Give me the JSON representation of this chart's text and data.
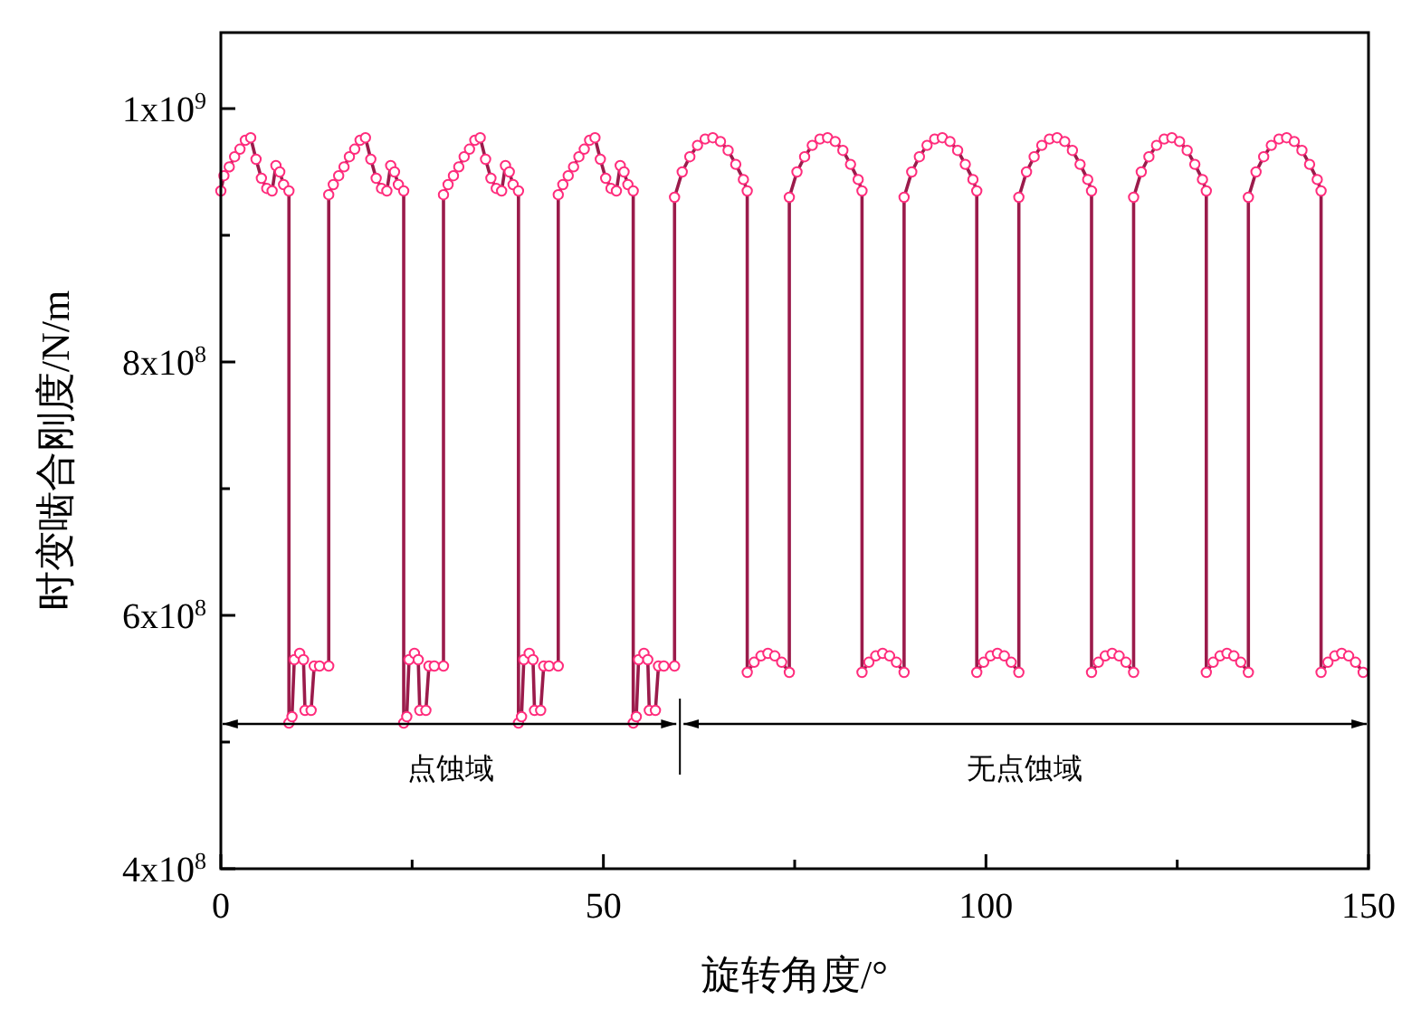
{
  "chart_data": {
    "type": "line",
    "xlabel": "旋转角度/°",
    "ylabel": "时变啮合刚度/N/m",
    "xlim": [
      0,
      150
    ],
    "xticks": [
      0,
      {
        "value": 25,
        "label": null
      },
      50,
      {
        "value": 75,
        "label": null
      },
      100,
      {
        "value": 125,
        "label": null
      },
      150
    ],
    "ylim": [
      400000000.0,
      1060000000.0
    ],
    "yticks": [
      {
        "value": 400000000.0,
        "label": "4x10$^{8}$"
      },
      {
        "value": 500000000.0,
        "label": null
      },
      {
        "value": 600000000.0,
        "label": "6x10$^{8}$"
      },
      {
        "value": 700000000.0,
        "label": null
      },
      {
        "value": 800000000.0,
        "label": "8x10$^{8}$"
      },
      {
        "value": 900000000.0,
        "label": null
      },
      {
        "value": 1000000000.0,
        "label": "1x10$^{9}$"
      }
    ],
    "marker": "circle",
    "line_style": "solid",
    "ref_lines": [
      {
        "axis": "x",
        "value": 60
      }
    ],
    "annotations": [
      "点蚀域",
      "无点蚀域"
    ],
    "series": [
      {
        "color": "#9b1b4b",
        "x": [
          0,
          0.4,
          1.1,
          1.8,
          2.5,
          3.2,
          3.9,
          4.6,
          5.3,
          6.0,
          6.7,
          7.2,
          7.7,
          8.2,
          8.9,
          8.9,
          9.3,
          9.6,
          10.3,
          10.8,
          11.0,
          11.8,
          12.2,
          12.9,
          14.1,
          14.1,
          14.7,
          15.4,
          16.1,
          16.8,
          17.5,
          18.2,
          18.9,
          19.6,
          20.3,
          21.0,
          21.7,
          22.2,
          22.7,
          23.2,
          23.9,
          23.9,
          24.3,
          24.6,
          25.3,
          25.8,
          26.0,
          26.8,
          27.2,
          27.9,
          29.1,
          29.1,
          29.7,
          30.4,
          31.1,
          31.8,
          32.5,
          33.2,
          33.9,
          34.6,
          35.3,
          36.0,
          36.7,
          37.2,
          37.7,
          38.2,
          38.9,
          38.9,
          39.3,
          39.6,
          40.3,
          40.8,
          41.0,
          41.8,
          42.2,
          42.9,
          44.1,
          44.1,
          44.7,
          45.4,
          46.1,
          46.8,
          47.5,
          48.2,
          48.9,
          49.6,
          50.3,
          51.0,
          51.7,
          52.2,
          52.7,
          53.2,
          53.9,
          53.9,
          54.3,
          54.6,
          55.3,
          55.8,
          56.0,
          56.8,
          57.2,
          57.9,
          59.3,
          59.3,
          60.3,
          61.3,
          62.3,
          63.3,
          64.3,
          65.3,
          66.3,
          67.3,
          68.3,
          68.8,
          68.8,
          69.7,
          70.6,
          71.5,
          72.4,
          73.3,
          74.3,
          74.3,
          75.3,
          76.3,
          77.3,
          78.3,
          79.3,
          80.3,
          81.3,
          82.3,
          83.3,
          83.8,
          83.8,
          84.7,
          85.6,
          86.5,
          87.4,
          88.3,
          89.3,
          89.3,
          90.3,
          91.3,
          92.3,
          93.3,
          94.3,
          95.3,
          96.3,
          97.3,
          98.3,
          98.8,
          98.8,
          99.7,
          100.6,
          101.5,
          102.4,
          103.3,
          104.3,
          104.3,
          105.3,
          106.3,
          107.3,
          108.3,
          109.3,
          110.3,
          111.3,
          112.3,
          113.3,
          113.8,
          113.8,
          114.7,
          115.6,
          116.5,
          117.4,
          118.3,
          119.3,
          119.3,
          120.3,
          121.3,
          122.3,
          123.3,
          124.3,
          125.3,
          126.3,
          127.3,
          128.3,
          128.8,
          128.8,
          129.7,
          130.6,
          131.5,
          132.4,
          133.3,
          134.3,
          134.3,
          135.3,
          136.3,
          137.3,
          138.3,
          139.3,
          140.3,
          141.3,
          142.3,
          143.3,
          143.8,
          143.8,
          144.7,
          145.6,
          146.5,
          147.4,
          148.3,
          149.3
        ],
        "values": [
          935000000.0,
          947000000.0,
          954000000.0,
          962000000.0,
          968000000.0,
          975000000.0,
          977000000.0,
          960000000.0,
          945000000.0,
          937000000.0,
          935000000.0,
          955000000.0,
          950000000.0,
          940000000.0,
          935000000.0,
          515000000.0,
          520000000.0,
          565000000.0,
          570000000.0,
          565000000.0,
          525000000.0,
          525000000.0,
          560000000.0,
          560000000.0,
          560000000.0,
          932000000.0,
          940000000.0,
          947000000.0,
          954000000.0,
          962000000.0,
          968000000.0,
          975000000.0,
          977000000.0,
          960000000.0,
          945000000.0,
          937000000.0,
          935000000.0,
          955000000.0,
          950000000.0,
          940000000.0,
          935000000.0,
          515000000.0,
          520000000.0,
          565000000.0,
          570000000.0,
          565000000.0,
          525000000.0,
          525000000.0,
          560000000.0,
          560000000.0,
          560000000.0,
          932000000.0,
          940000000.0,
          947000000.0,
          954000000.0,
          962000000.0,
          968000000.0,
          975000000.0,
          977000000.0,
          960000000.0,
          945000000.0,
          937000000.0,
          935000000.0,
          955000000.0,
          950000000.0,
          940000000.0,
          935000000.0,
          515000000.0,
          520000000.0,
          565000000.0,
          570000000.0,
          565000000.0,
          525000000.0,
          525000000.0,
          560000000.0,
          560000000.0,
          560000000.0,
          932000000.0,
          940000000.0,
          947000000.0,
          954000000.0,
          962000000.0,
          968000000.0,
          975000000.0,
          977000000.0,
          960000000.0,
          945000000.0,
          937000000.0,
          935000000.0,
          955000000.0,
          950000000.0,
          940000000.0,
          935000000.0,
          515000000.0,
          520000000.0,
          565000000.0,
          570000000.0,
          565000000.0,
          525000000.0,
          525000000.0,
          560000000.0,
          560000000.0,
          560000000.0,
          930000000.0,
          950000000.0,
          962000000.0,
          971000000.0,
          976000000.0,
          977000000.0,
          974000000.0,
          967000000.0,
          956000000.0,
          944000000.0,
          935000000.0,
          555000000.0,
          563000000.0,
          568000000.0,
          570000000.0,
          568000000.0,
          563000000.0,
          555000000.0,
          930000000.0,
          950000000.0,
          962000000.0,
          971000000.0,
          976000000.0,
          977000000.0,
          974000000.0,
          967000000.0,
          956000000.0,
          944000000.0,
          935000000.0,
          555000000.0,
          563000000.0,
          568000000.0,
          570000000.0,
          568000000.0,
          563000000.0,
          555000000.0,
          930000000.0,
          950000000.0,
          962000000.0,
          971000000.0,
          976000000.0,
          977000000.0,
          974000000.0,
          967000000.0,
          956000000.0,
          944000000.0,
          935000000.0,
          555000000.0,
          563000000.0,
          568000000.0,
          570000000.0,
          568000000.0,
          563000000.0,
          555000000.0,
          930000000.0,
          950000000.0,
          962000000.0,
          971000000.0,
          976000000.0,
          977000000.0,
          974000000.0,
          967000000.0,
          956000000.0,
          944000000.0,
          935000000.0,
          555000000.0,
          563000000.0,
          568000000.0,
          570000000.0,
          568000000.0,
          563000000.0,
          555000000.0,
          930000000.0,
          950000000.0,
          962000000.0,
          971000000.0,
          976000000.0,
          977000000.0,
          974000000.0,
          967000000.0,
          956000000.0,
          944000000.0,
          935000000.0,
          555000000.0,
          563000000.0,
          568000000.0,
          570000000.0,
          568000000.0,
          563000000.0,
          555000000.0,
          930000000.0,
          950000000.0,
          962000000.0,
          971000000.0,
          976000000.0,
          977000000.0,
          974000000.0,
          967000000.0,
          956000000.0,
          944000000.0,
          935000000.0,
          555000000.0,
          563000000.0,
          568000000.0,
          570000000.0,
          568000000.0,
          563000000.0,
          555000000.0
        ]
      }
    ]
  }
}
